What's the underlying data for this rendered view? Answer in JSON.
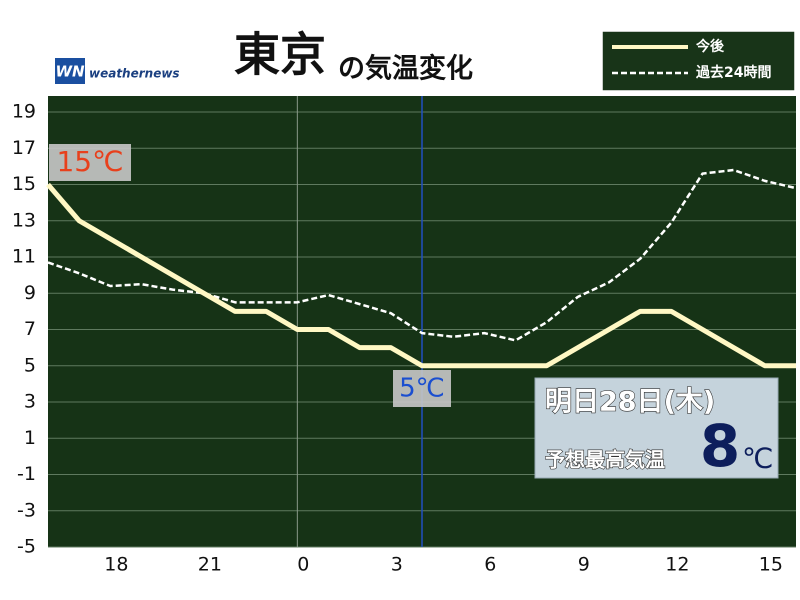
{
  "chart_data": {
    "type": "line",
    "title": "東京",
    "subtitle": "の気温変化",
    "brand": "weathernews",
    "brand_mark": "WN",
    "categories": [
      null,
      null,
      "18",
      null,
      null,
      "21",
      null,
      null,
      "0",
      null,
      null,
      "3",
      null,
      null,
      "6",
      null,
      null,
      "9",
      null,
      null,
      "12",
      null,
      null,
      "15",
      null
    ],
    "series": [
      {
        "name": "今後",
        "color": "#fff8c4",
        "dash": false,
        "values": [
          15,
          13,
          12,
          11,
          10,
          9,
          8,
          8,
          7,
          7,
          6,
          6,
          5,
          5,
          5,
          5,
          5,
          6,
          7,
          8,
          8,
          7,
          6,
          5,
          5
        ]
      },
      {
        "name": "過去24時間",
        "color": "#ffffff",
        "dash": true,
        "values": [
          10.7,
          10.1,
          9.4,
          9.5,
          9.2,
          9.0,
          8.5,
          8.5,
          8.5,
          8.9,
          8.4,
          7.9,
          6.8,
          6.6,
          6.8,
          6.4,
          7.4,
          8.8,
          9.6,
          10.9,
          12.9,
          15.6,
          15.8,
          15.2,
          14.8
        ]
      }
    ],
    "ylim": [
      -5,
      19
    ],
    "yticks": [
      -5,
      -3,
      -1,
      1,
      3,
      5,
      7,
      9,
      11,
      13,
      15,
      17,
      19
    ],
    "grid": true,
    "day_line_index": 8,
    "now_line_index": 12,
    "start_annotation": "15℃",
    "now_annotation": "5℃",
    "forecast": {
      "date": "明日28日(木)",
      "label": "予想最高気温",
      "value": 8,
      "unit": "℃"
    }
  }
}
